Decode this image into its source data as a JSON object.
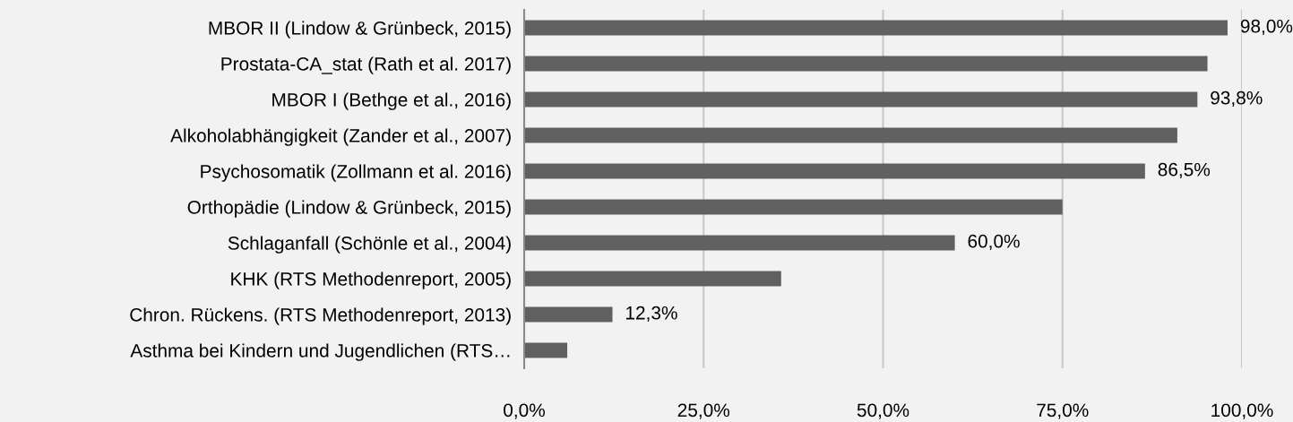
{
  "chart_data": {
    "type": "bar",
    "orientation": "horizontal",
    "categories": [
      "MBOR II (Lindow & Grünbeck, 2015)",
      "Prostata-CA_stat (Rath et al. 2017)",
      "MBOR I (Bethge et al., 2016)",
      "Alkoholabhängigkeit (Zander et al., 2007)",
      "Psychosomatik (Zollmann et al. 2016)",
      "Orthopädie (Lindow & Grünbeck, 2015)",
      "Schlaganfall (Schönle et al., 2004)",
      "KHK (RTS Methodenreport, 2005)",
      "Chron. Rückens. (RTS Methodenreport, 2013)",
      "Asthma bei Kindern und Jugendlichen (RTS…"
    ],
    "values": [
      98.0,
      95.2,
      93.8,
      91.0,
      86.5,
      75.0,
      60.0,
      35.8,
      12.3,
      6.0
    ],
    "value_labels": [
      "98,0%",
      null,
      "93,8%",
      null,
      "86,5%",
      null,
      "60,0%",
      null,
      "12,3%",
      null
    ],
    "color": "#606060",
    "xlim": [
      0,
      100
    ],
    "xticks": [
      {
        "value": 0,
        "label": "0,0%"
      },
      {
        "value": 25,
        "label": "25,0%"
      },
      {
        "value": 50,
        "label": "50,0%"
      },
      {
        "value": 75,
        "label": "75,0%"
      },
      {
        "value": 100,
        "label": "100,0%"
      }
    ],
    "grid": "x",
    "legend": false
  }
}
